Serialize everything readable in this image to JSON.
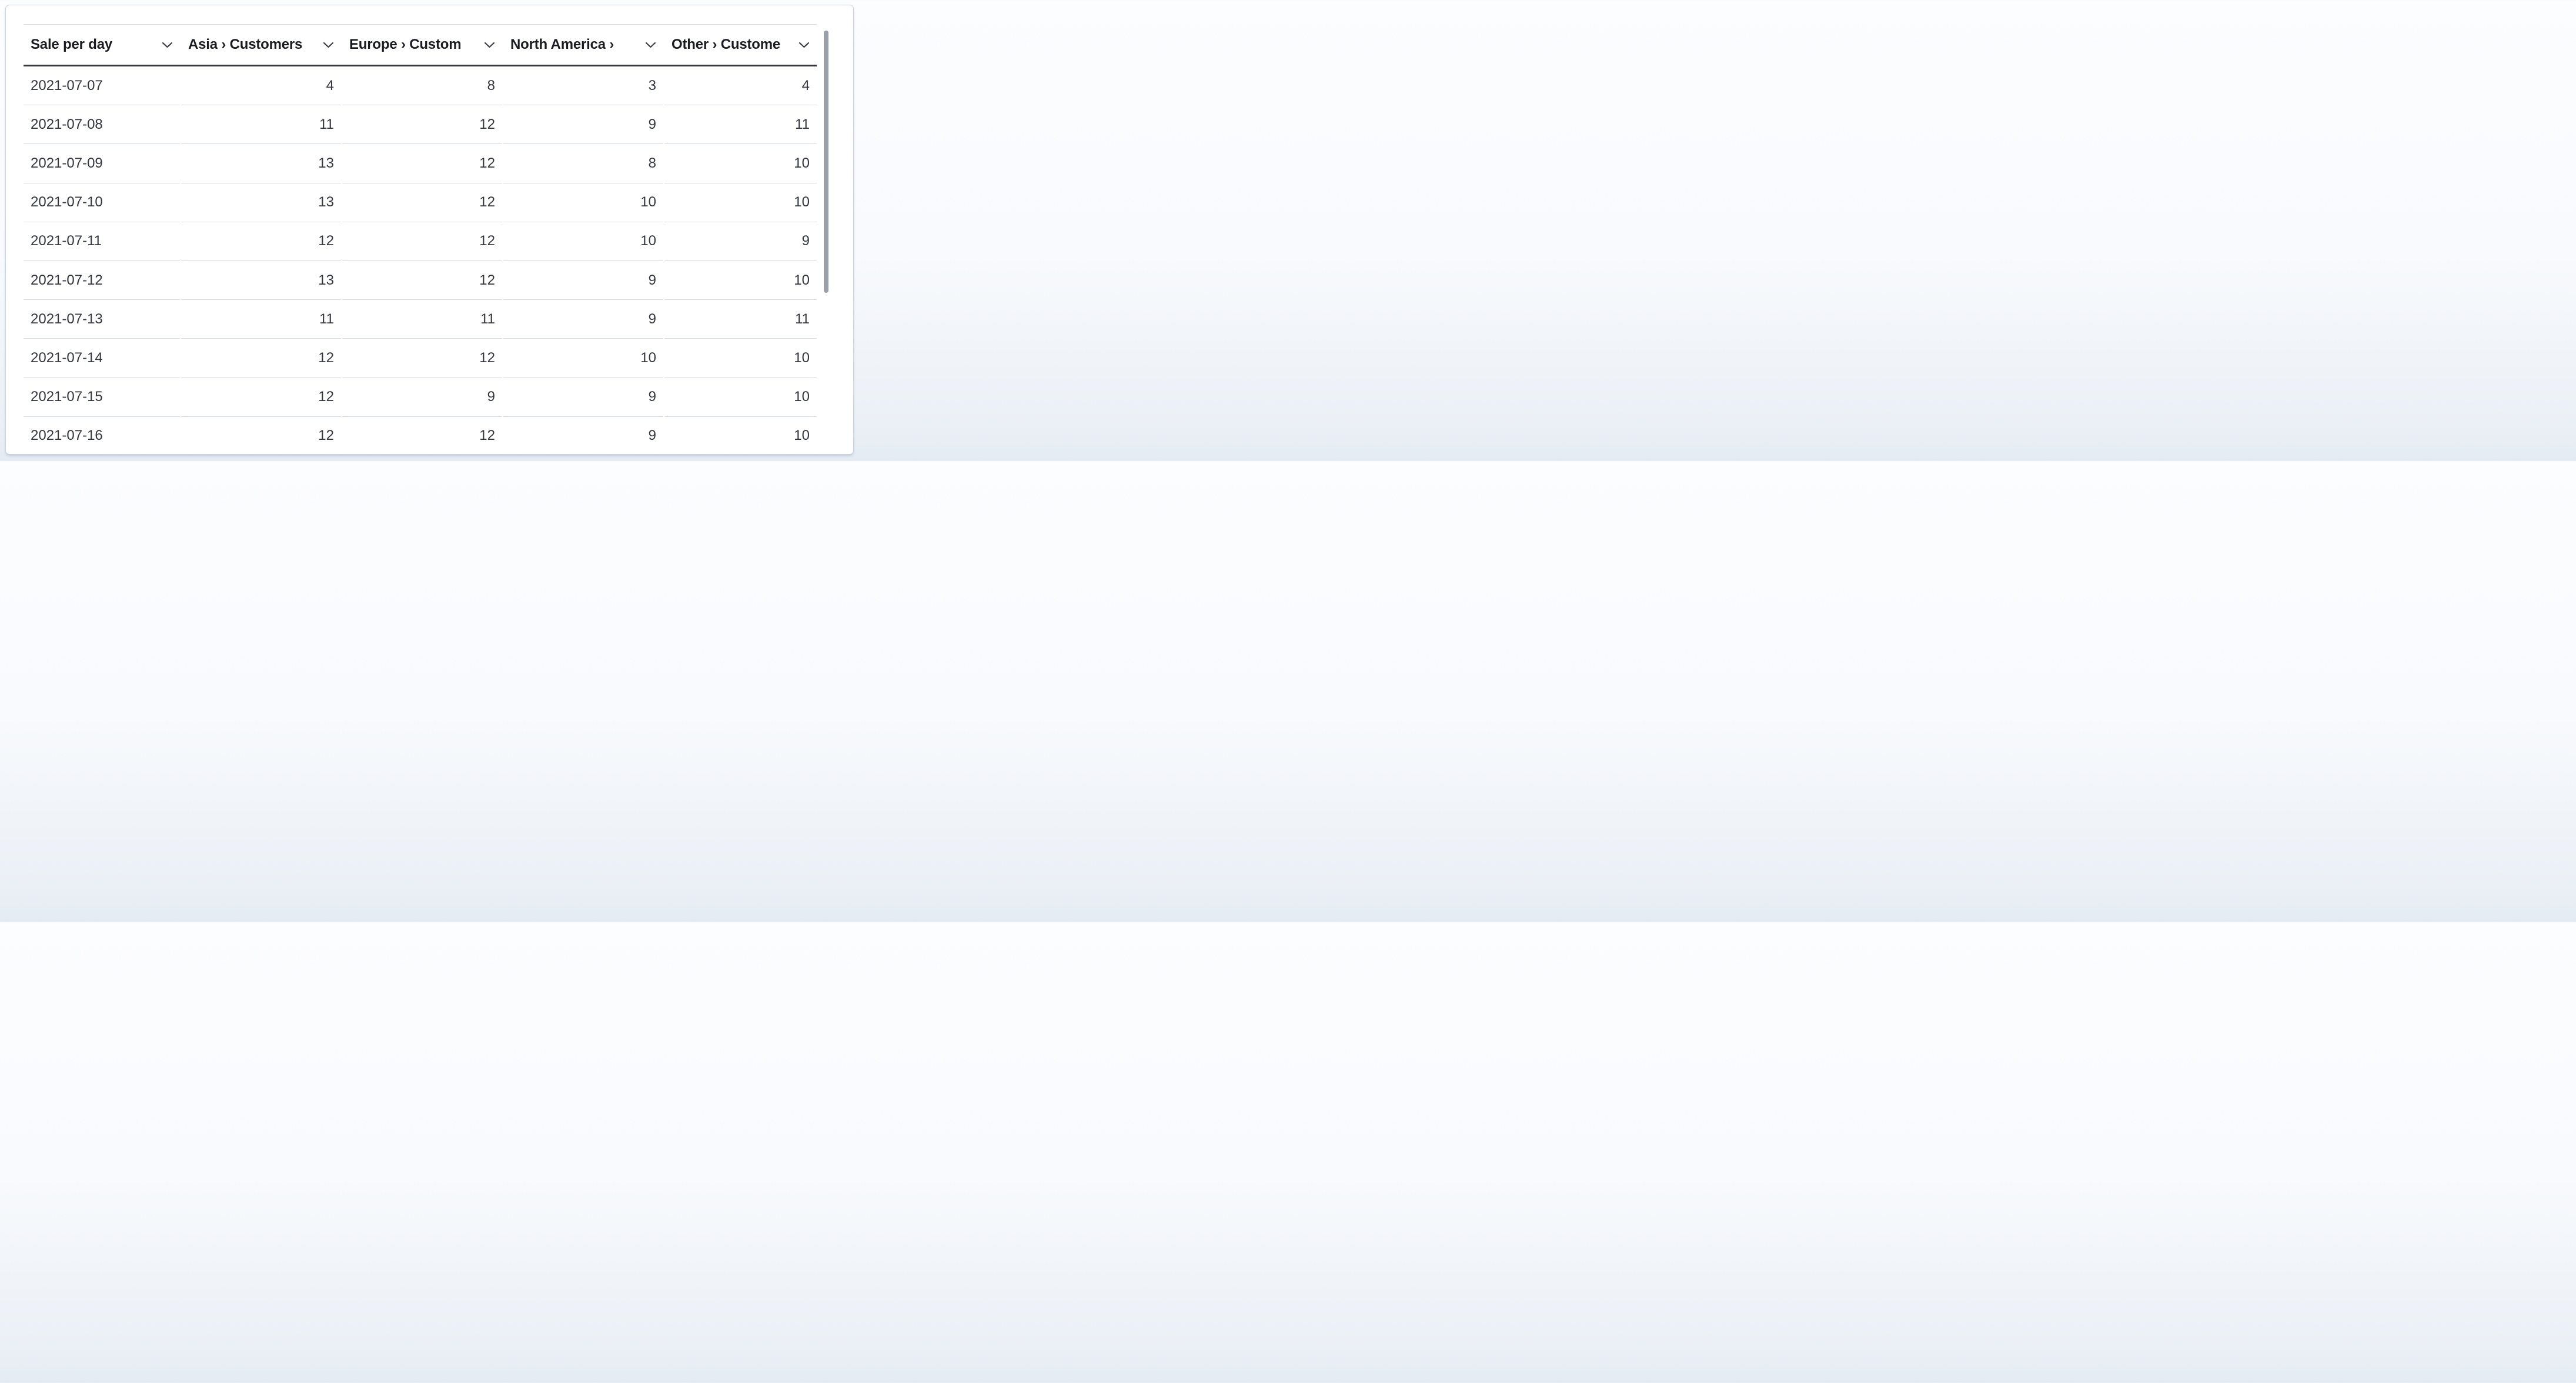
{
  "table": {
    "title_column": "Sale per day",
    "columns": [
      {
        "key": "sale_per_day",
        "label": "Sale per day",
        "align": "left",
        "icon": "chevron-down-icon"
      },
      {
        "key": "asia",
        "label": "Asia › Customers",
        "align": "right",
        "icon": "chevron-down-icon"
      },
      {
        "key": "europe",
        "label": "Europe › Custom",
        "align": "right",
        "icon": "chevron-down-icon"
      },
      {
        "key": "north_america",
        "label": "North America ›",
        "align": "right",
        "icon": "chevron-down-icon"
      },
      {
        "key": "other",
        "label": "Other › Custome",
        "align": "right",
        "icon": "chevron-down-icon"
      }
    ],
    "rows": [
      {
        "date": "2021-07-07",
        "values": [
          4,
          8,
          3,
          4
        ]
      },
      {
        "date": "2021-07-08",
        "values": [
          11,
          12,
          9,
          11
        ]
      },
      {
        "date": "2021-07-09",
        "values": [
          13,
          12,
          8,
          10
        ]
      },
      {
        "date": "2021-07-10",
        "values": [
          13,
          12,
          10,
          10
        ]
      },
      {
        "date": "2021-07-11",
        "values": [
          12,
          12,
          10,
          9
        ]
      },
      {
        "date": "2021-07-12",
        "values": [
          13,
          12,
          9,
          10
        ]
      },
      {
        "date": "2021-07-13",
        "values": [
          11,
          11,
          9,
          11
        ]
      },
      {
        "date": "2021-07-14",
        "values": [
          12,
          12,
          10,
          10
        ]
      },
      {
        "date": "2021-07-15",
        "values": [
          12,
          9,
          9,
          10
        ]
      },
      {
        "date": "2021-07-16",
        "values": [
          12,
          12,
          9,
          10
        ]
      }
    ]
  },
  "scrollbar": {
    "orientation": "vertical"
  },
  "colors": {
    "header_text": "#1a1c21",
    "body_text": "#343741",
    "header_underline": "#343741",
    "row_divider": "#d3dae6",
    "card_border": "#c9d3e2",
    "card_background": "#ffffff",
    "scrollbar_thumb": "#9aa1ab",
    "page_background_bottom": "#e5ebf3"
  }
}
